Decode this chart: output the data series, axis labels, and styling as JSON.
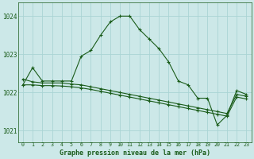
{
  "title": "Graphe pression niveau de la mer (hPa)",
  "bg_color": "#cce8e8",
  "grid_color": "#aad4d4",
  "line_color": "#1a5c1a",
  "xlim": [
    -0.5,
    23.5
  ],
  "ylim": [
    1020.7,
    1024.35
  ],
  "yticks": [
    1021,
    1022,
    1023,
    1024
  ],
  "xticks": [
    0,
    1,
    2,
    3,
    4,
    5,
    6,
    7,
    8,
    9,
    10,
    11,
    12,
    13,
    14,
    15,
    16,
    17,
    18,
    19,
    20,
    21,
    22,
    23
  ],
  "line1_x": [
    0,
    1,
    2,
    3,
    4,
    5,
    6,
    7,
    8,
    9,
    10,
    11,
    12,
    13,
    14,
    15,
    16,
    17,
    18,
    19,
    20,
    21,
    22,
    23
  ],
  "line1_y": [
    1022.2,
    1022.65,
    1022.3,
    1022.3,
    1022.3,
    1022.3,
    1022.95,
    1023.1,
    1023.5,
    1023.85,
    1024.0,
    1024.0,
    1023.65,
    1023.4,
    1023.15,
    1022.8,
    1022.3,
    1022.2,
    1021.85,
    1021.85,
    1021.15,
    1021.4,
    1022.05,
    1021.95
  ],
  "line2_x": [
    0,
    1,
    2,
    3,
    4,
    5,
    6,
    7,
    8,
    9,
    10,
    11,
    12,
    13,
    14,
    15,
    16,
    17,
    18,
    19,
    20,
    21,
    22,
    23
  ],
  "line2_y": [
    1022.35,
    1022.28,
    1022.25,
    1022.25,
    1022.25,
    1022.22,
    1022.2,
    1022.15,
    1022.1,
    1022.05,
    1022.0,
    1021.95,
    1021.9,
    1021.85,
    1021.8,
    1021.75,
    1021.7,
    1021.65,
    1021.6,
    1021.55,
    1021.5,
    1021.45,
    1021.95,
    1021.9
  ],
  "line3_x": [
    0,
    1,
    2,
    3,
    4,
    5,
    6,
    7,
    8,
    9,
    10,
    11,
    12,
    13,
    14,
    15,
    16,
    17,
    18,
    19,
    20,
    21,
    22,
    23
  ],
  "line3_y": [
    1022.2,
    1022.2,
    1022.18,
    1022.18,
    1022.17,
    1022.15,
    1022.12,
    1022.08,
    1022.03,
    1021.98,
    1021.93,
    1021.88,
    1021.83,
    1021.78,
    1021.73,
    1021.68,
    1021.63,
    1021.58,
    1021.53,
    1021.48,
    1021.43,
    1021.38,
    1021.88,
    1021.83
  ]
}
